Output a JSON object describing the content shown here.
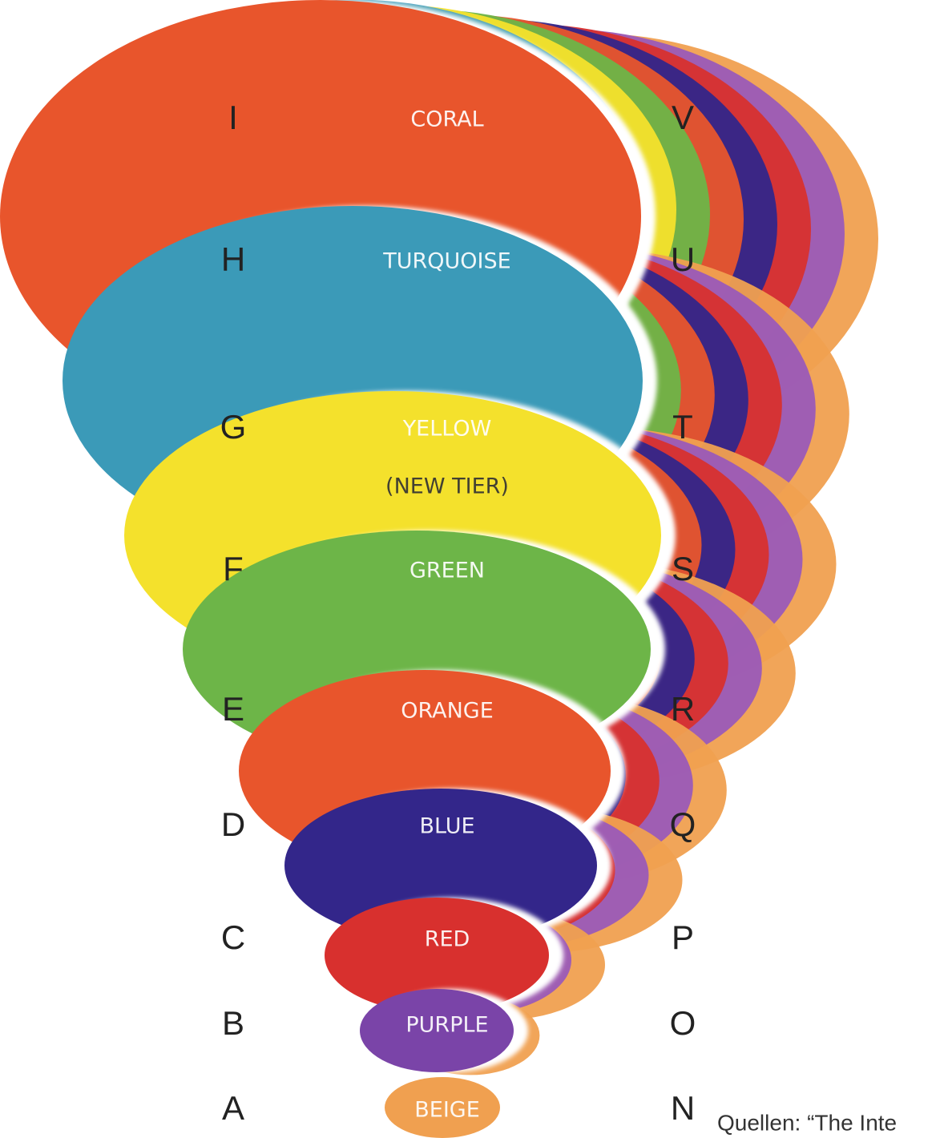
{
  "levels": [
    {
      "left": "I",
      "label": "CORAL",
      "right": "V"
    },
    {
      "left": "H",
      "label": "TURQUOISE",
      "right": "U"
    },
    {
      "left": "G",
      "label": "YELLOW",
      "note": "(NEW TIER)",
      "right": "T"
    },
    {
      "left": "F",
      "label": "GREEN",
      "right": "S"
    },
    {
      "left": "E",
      "label": "ORANGE",
      "right": "R"
    },
    {
      "left": "D",
      "label": "BLUE",
      "right": "Q"
    },
    {
      "left": "C",
      "label": "RED",
      "right": "P"
    },
    {
      "left": "B",
      "label": "PURPLE",
      "right": "O"
    },
    {
      "left": "A",
      "label": "BEIGE",
      "right": "N"
    }
  ],
  "source": "Quellen: “The Inte"
}
